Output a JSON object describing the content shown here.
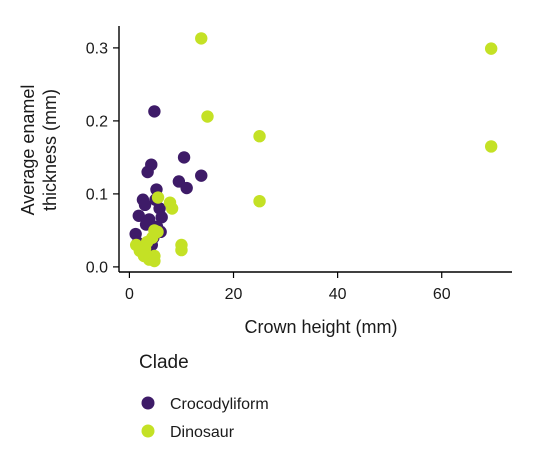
{
  "chart_data": {
    "type": "scatter",
    "xlabel": "Crown height (mm)",
    "ylabel": [
      "Average enamel",
      "thickness (mm)"
    ],
    "xlim": [
      -2,
      73.5
    ],
    "ylim": [
      -0.007,
      0.33
    ],
    "xticks": [
      0,
      20,
      40,
      60
    ],
    "xtick_labels": [
      "0",
      "20",
      "40",
      "60"
    ],
    "yticks": [
      0.0,
      0.1,
      0.2,
      0.3
    ],
    "ytick_labels": [
      "0.0",
      "0.1",
      "0.2",
      "0.3"
    ],
    "grid": false,
    "legend": {
      "title": "Clade",
      "placement": "bottom-left"
    },
    "series": [
      {
        "name": "Crocodyliform",
        "color": "#3e1b68",
        "points": [
          {
            "x": 4.8,
            "y": 0.213
          },
          {
            "x": 4.2,
            "y": 0.14
          },
          {
            "x": 3.5,
            "y": 0.13
          },
          {
            "x": 10.5,
            "y": 0.15
          },
          {
            "x": 13.8,
            "y": 0.125
          },
          {
            "x": 9.5,
            "y": 0.117
          },
          {
            "x": 11.0,
            "y": 0.108
          },
          {
            "x": 5.2,
            "y": 0.106
          },
          {
            "x": 5.0,
            "y": 0.092
          },
          {
            "x": 2.6,
            "y": 0.092
          },
          {
            "x": 3.0,
            "y": 0.085
          },
          {
            "x": 5.8,
            "y": 0.08
          },
          {
            "x": 1.8,
            "y": 0.07
          },
          {
            "x": 6.2,
            "y": 0.068
          },
          {
            "x": 3.8,
            "y": 0.065
          },
          {
            "x": 3.2,
            "y": 0.058
          },
          {
            "x": 5.3,
            "y": 0.055
          },
          {
            "x": 6.0,
            "y": 0.048
          },
          {
            "x": 1.2,
            "y": 0.045
          },
          {
            "x": 4.6,
            "y": 0.04
          },
          {
            "x": 1.6,
            "y": 0.033
          },
          {
            "x": 4.3,
            "y": 0.03
          },
          {
            "x": 2.3,
            "y": 0.022
          }
        ]
      },
      {
        "name": "Dinosaur",
        "color": "#c4e125",
        "points": [
          {
            "x": 13.8,
            "y": 0.313
          },
          {
            "x": 69.5,
            "y": 0.299
          },
          {
            "x": 15.0,
            "y": 0.206
          },
          {
            "x": 25.0,
            "y": 0.179
          },
          {
            "x": 69.5,
            "y": 0.165
          },
          {
            "x": 5.5,
            "y": 0.095
          },
          {
            "x": 25.0,
            "y": 0.09
          },
          {
            "x": 7.8,
            "y": 0.088
          },
          {
            "x": 8.2,
            "y": 0.08
          },
          {
            "x": 4.8,
            "y": 0.05
          },
          {
            "x": 5.4,
            "y": 0.048
          },
          {
            "x": 4.4,
            "y": 0.04
          },
          {
            "x": 3.4,
            "y": 0.034
          },
          {
            "x": 1.3,
            "y": 0.03
          },
          {
            "x": 10.0,
            "y": 0.03
          },
          {
            "x": 3.0,
            "y": 0.025
          },
          {
            "x": 10.0,
            "y": 0.023
          },
          {
            "x": 2.0,
            "y": 0.022
          },
          {
            "x": 2.8,
            "y": 0.015
          },
          {
            "x": 4.8,
            "y": 0.015
          },
          {
            "x": 3.8,
            "y": 0.01
          },
          {
            "x": 4.8,
            "y": 0.008
          }
        ]
      }
    ]
  }
}
